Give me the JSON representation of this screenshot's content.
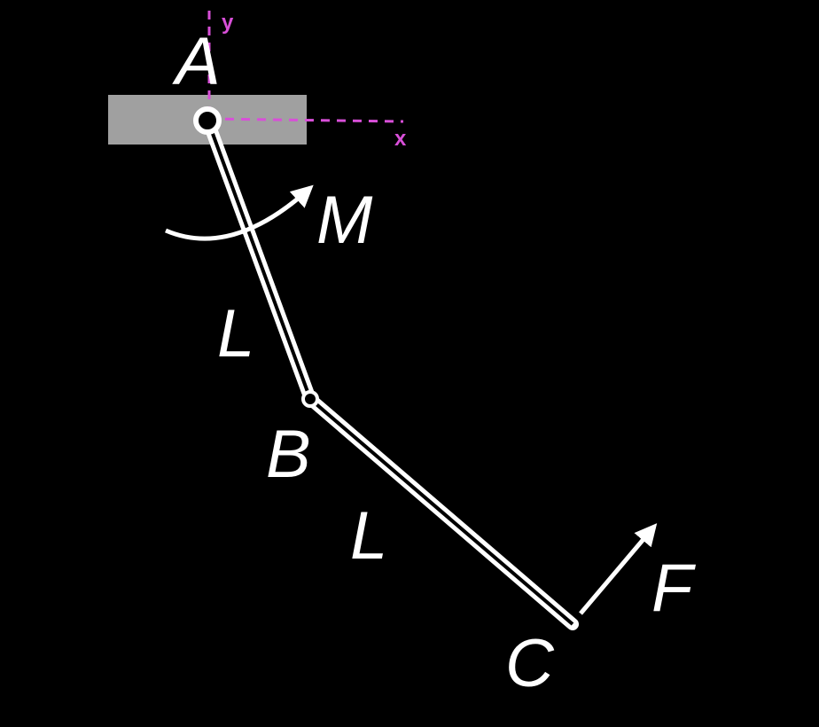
{
  "labels": {
    "pin_a": "A",
    "joint_b": "B",
    "end_c": "C",
    "moment": "M",
    "force": "F",
    "length_ab": "L",
    "length_bc": "L"
  },
  "axes": {
    "x_label": "x",
    "y_label": "y"
  },
  "colors": {
    "background": "#000000",
    "structure": "#ffffff",
    "support": "#a0a0a0",
    "axes": "#d84fd8"
  }
}
